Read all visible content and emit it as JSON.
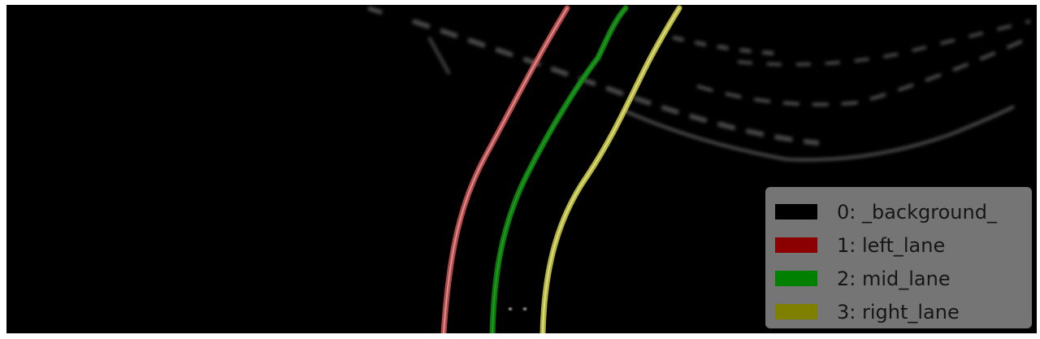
{
  "legend": {
    "items": [
      {
        "label": "0: _background_",
        "color": "#000000"
      },
      {
        "label": "1: left_lane",
        "color": "#8b0000"
      },
      {
        "label": "2: mid_lane",
        "color": "#008000"
      },
      {
        "label": "3: right_lane",
        "color": "#808000"
      }
    ]
  },
  "lanes": {
    "left_color": "#b04848",
    "mid_color": "#0d7a0d",
    "right_color": "#b3b340"
  }
}
